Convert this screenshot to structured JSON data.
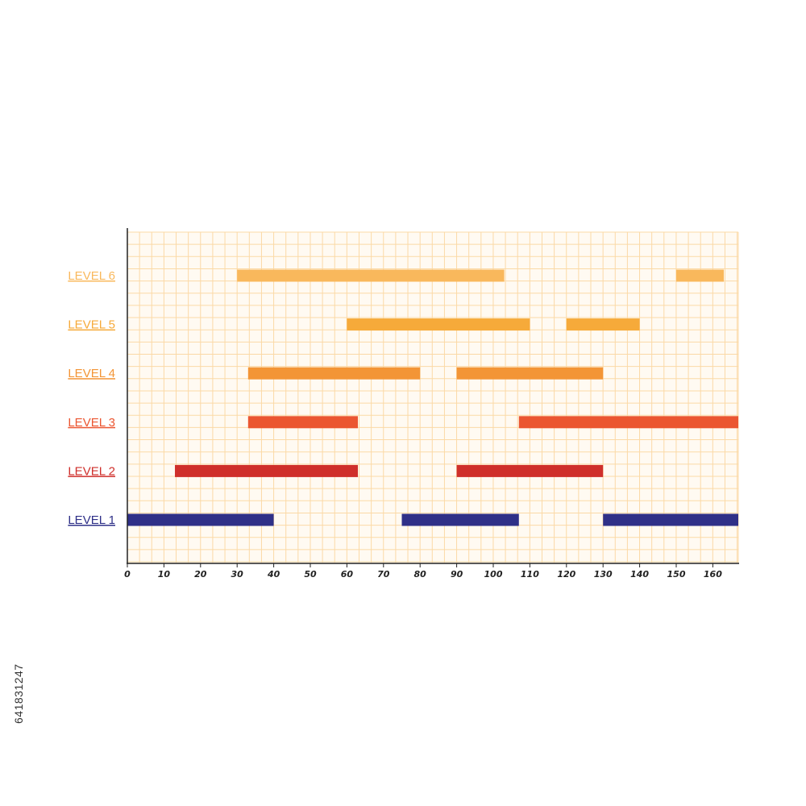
{
  "chart_data": {
    "type": "bar",
    "orientation": "horizontal-ranges",
    "title": "",
    "xlabel": "",
    "ylabel": "",
    "xlim": [
      0,
      167
    ],
    "xticks": [
      0,
      10,
      20,
      30,
      40,
      50,
      60,
      70,
      80,
      90,
      100,
      110,
      120,
      130,
      140,
      150,
      160
    ],
    "grid": true,
    "grid_minor_step": 3.333,
    "grid_color": "#fbd9a6",
    "background": "#fffaf2",
    "series": [
      {
        "name": "LEVEL 6",
        "color": "#f9b85c",
        "ranges": [
          [
            30,
            103
          ],
          [
            150,
            163
          ]
        ]
      },
      {
        "name": "LEVEL 5",
        "color": "#f6aa3a",
        "ranges": [
          [
            60,
            110
          ],
          [
            120,
            140
          ]
        ]
      },
      {
        "name": "LEVEL 4",
        "color": "#f39536",
        "ranges": [
          [
            33,
            80
          ],
          [
            90,
            130
          ]
        ]
      },
      {
        "name": "LEVEL 3",
        "color": "#eb5631",
        "ranges": [
          [
            33,
            63
          ],
          [
            107,
            167
          ]
        ]
      },
      {
        "name": "LEVEL 2",
        "color": "#cf2f2b",
        "ranges": [
          [
            13,
            63
          ],
          [
            90,
            130
          ]
        ]
      },
      {
        "name": "LEVEL 1",
        "color": "#2f3088",
        "ranges": [
          [
            0,
            40
          ],
          [
            75,
            107
          ],
          [
            130,
            167
          ]
        ]
      }
    ]
  },
  "watermark_id": "641831247"
}
